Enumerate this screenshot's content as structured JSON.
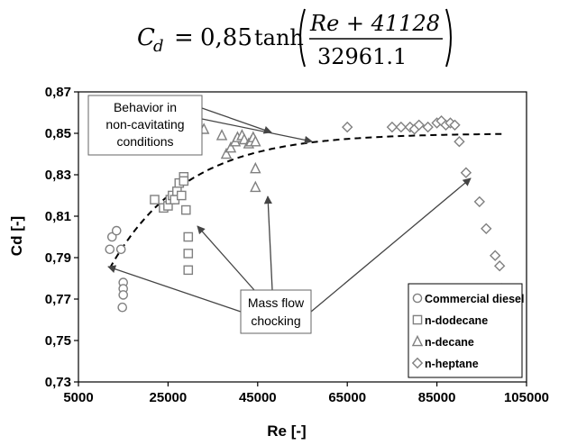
{
  "formula": {
    "lhs_var": "C",
    "lhs_sub": "d",
    "equals": "=",
    "coef": "0,85",
    "func": "tanh",
    "numerator": "Re + 41128",
    "denominator": "32961.1"
  },
  "chart_data": {
    "type": "scatter",
    "xlabel": "Re [-]",
    "ylabel": "Cd [-]",
    "xlim": [
      5000,
      105000
    ],
    "ylim": [
      0.73,
      0.87
    ],
    "x_ticks": [
      5000,
      25000,
      45000,
      65000,
      85000,
      105000
    ],
    "x_tick_labels": [
      "5000",
      "25000",
      "45000",
      "65000",
      "85000",
      "105000"
    ],
    "y_ticks": [
      0.73,
      0.75,
      0.77,
      0.79,
      0.81,
      0.83,
      0.85,
      0.87
    ],
    "y_tick_labels": [
      "0,73",
      "0,75",
      "0,77",
      "0,79",
      "0,81",
      "0,83",
      "0,85",
      "0,87"
    ],
    "grid": false,
    "legend_position": "bottom-right",
    "series": [
      {
        "name": "Commercial diesel",
        "marker": "circle",
        "points": [
          [
            12000,
            0.794
          ],
          [
            12500,
            0.8
          ],
          [
            13500,
            0.803
          ],
          [
            14500,
            0.794
          ],
          [
            15000,
            0.778
          ],
          [
            15000,
            0.775
          ],
          [
            15000,
            0.772
          ],
          [
            14800,
            0.766
          ]
        ]
      },
      {
        "name": "n-dodecane",
        "marker": "square",
        "points": [
          [
            22000,
            0.818
          ],
          [
            24000,
            0.814
          ],
          [
            25000,
            0.815
          ],
          [
            25500,
            0.818
          ],
          [
            26000,
            0.82
          ],
          [
            26500,
            0.818
          ],
          [
            27000,
            0.822
          ],
          [
            27500,
            0.826
          ],
          [
            28000,
            0.82
          ],
          [
            28500,
            0.829
          ],
          [
            28500,
            0.827
          ],
          [
            29000,
            0.813
          ],
          [
            29500,
            0.8
          ],
          [
            29500,
            0.792
          ],
          [
            29500,
            0.784
          ]
        ]
      },
      {
        "name": "n-decane",
        "marker": "triangle",
        "points": [
          [
            33000,
            0.852
          ],
          [
            37000,
            0.849
          ],
          [
            38000,
            0.84
          ],
          [
            39000,
            0.843
          ],
          [
            40000,
            0.846
          ],
          [
            40500,
            0.848
          ],
          [
            41500,
            0.849
          ],
          [
            42000,
            0.847
          ],
          [
            43000,
            0.845
          ],
          [
            43500,
            0.846
          ],
          [
            44000,
            0.848
          ],
          [
            44500,
            0.846
          ],
          [
            44500,
            0.833
          ],
          [
            44500,
            0.824
          ]
        ]
      },
      {
        "name": "n-heptane",
        "marker": "diamond",
        "points": [
          [
            65000,
            0.853
          ],
          [
            75000,
            0.853
          ],
          [
            77000,
            0.853
          ],
          [
            79000,
            0.853
          ],
          [
            80000,
            0.852
          ],
          [
            81000,
            0.854
          ],
          [
            83000,
            0.853
          ],
          [
            85000,
            0.855
          ],
          [
            86000,
            0.856
          ],
          [
            87000,
            0.854
          ],
          [
            88000,
            0.855
          ],
          [
            89000,
            0.854
          ],
          [
            90000,
            0.846
          ],
          [
            91500,
            0.831
          ],
          [
            94500,
            0.817
          ],
          [
            96000,
            0.804
          ],
          [
            98000,
            0.791
          ],
          [
            99000,
            0.786
          ],
          [
            99500,
            0.775
          ]
        ]
      }
    ],
    "fit_curve": {
      "coef": 0.85,
      "offset": 41128,
      "scale": 32961.1,
      "x_start": 12000,
      "x_end": 100000
    },
    "annotations": [
      {
        "text_lines": [
          "Behavior in",
          "non-cavitating",
          "conditions"
        ],
        "target": [
          49000,
          0.846
        ]
      },
      {
        "text_lines": [
          "Mass flow",
          "chocking"
        ],
        "targets": [
          [
            14500,
            0.79
          ],
          [
            28500,
            0.811
          ],
          [
            45000,
            0.836
          ],
          [
            91500,
            0.831
          ]
        ]
      }
    ]
  }
}
